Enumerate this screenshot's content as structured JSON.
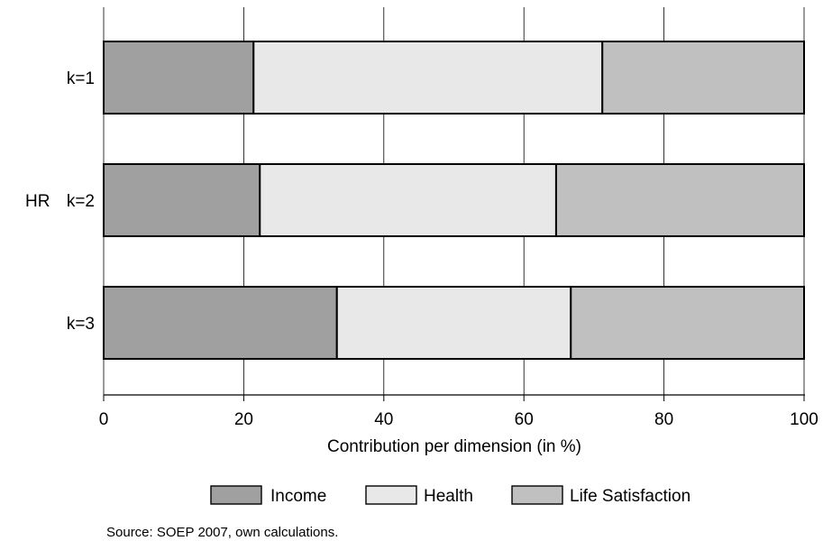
{
  "chart_data": {
    "type": "bar",
    "orientation": "horizontal",
    "stacked": true,
    "group_label": "HR",
    "categories": [
      "k=1",
      "k=2",
      "k=3"
    ],
    "series": [
      {
        "name": "Income",
        "values": [
          21.4,
          22.3,
          33.3
        ],
        "color": "#a0a0a0"
      },
      {
        "name": "Health",
        "values": [
          49.8,
          42.3,
          33.4
        ],
        "color": "#e8e8e8"
      },
      {
        "name": "Life Satisfaction",
        "values": [
          28.8,
          35.4,
          33.3
        ],
        "color": "#c0c0c0"
      }
    ],
    "xlabel": "Contribution per dimension (in %)",
    "xlim": [
      0,
      100
    ],
    "xticks": [
      "0",
      "20",
      "40",
      "60",
      "80",
      "100"
    ],
    "grid": true,
    "legend_position": "bottom"
  },
  "source": "Source: SOEP 2007, own calculations."
}
